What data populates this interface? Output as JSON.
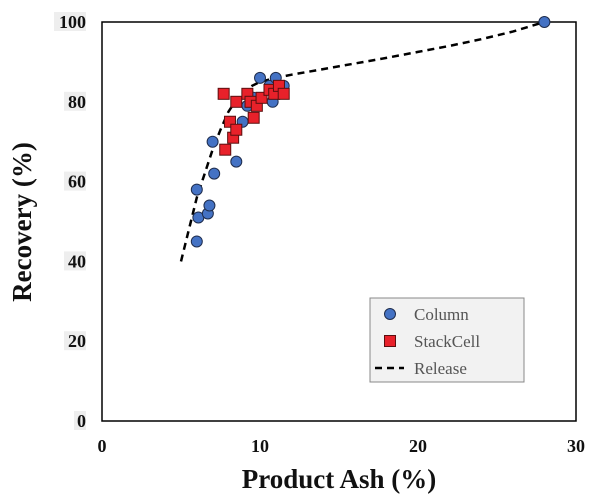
{
  "chart_data": {
    "type": "scatter",
    "xlabel": "Product Ash (%)",
    "ylabel": "Recovery (%)",
    "xlim": [
      0,
      30
    ],
    "ylim": [
      0,
      100
    ],
    "xticks": [
      0,
      10,
      20,
      30
    ],
    "yticks": [
      0,
      20,
      40,
      60,
      80,
      100
    ],
    "grid": false,
    "legend_placement": "bottom-right",
    "series": [
      {
        "name": "Column",
        "kind": "scatter",
        "marker": "circle",
        "color": "#4472C4",
        "points": [
          [
            6.0,
            45
          ],
          [
            6.1,
            51
          ],
          [
            6.0,
            58
          ],
          [
            6.7,
            52
          ],
          [
            6.8,
            54
          ],
          [
            7.1,
            62
          ],
          [
            7.0,
            70
          ],
          [
            8.5,
            65
          ],
          [
            8.9,
            75
          ],
          [
            9.2,
            79
          ],
          [
            9.6,
            81
          ],
          [
            10.0,
            86
          ],
          [
            10.6,
            84
          ],
          [
            10.8,
            80
          ],
          [
            11.0,
            86
          ],
          [
            11.5,
            84
          ],
          [
            28.0,
            100
          ]
        ]
      },
      {
        "name": "StackCell",
        "kind": "scatter",
        "marker": "square",
        "color": "#E8212A",
        "points": [
          [
            7.7,
            82
          ],
          [
            7.8,
            68
          ],
          [
            8.1,
            75
          ],
          [
            8.3,
            71
          ],
          [
            8.5,
            73
          ],
          [
            8.5,
            80
          ],
          [
            9.2,
            82
          ],
          [
            9.4,
            80
          ],
          [
            9.6,
            76
          ],
          [
            9.8,
            79
          ],
          [
            10.1,
            81
          ],
          [
            10.6,
            83
          ],
          [
            10.9,
            82
          ],
          [
            11.2,
            84
          ],
          [
            11.5,
            82
          ]
        ]
      },
      {
        "name": "Release",
        "kind": "line",
        "style": "dashed",
        "color": "#000000",
        "points": [
          [
            5.0,
            40
          ],
          [
            5.5,
            48
          ],
          [
            6.0,
            56
          ],
          [
            6.5,
            62
          ],
          [
            7.0,
            68
          ],
          [
            7.5,
            73
          ],
          [
            8.0,
            77.5
          ],
          [
            8.5,
            80.5
          ],
          [
            9.0,
            82.5
          ],
          [
            9.5,
            84
          ],
          [
            10.0,
            85
          ],
          [
            11.0,
            86
          ],
          [
            12.0,
            86.8
          ],
          [
            14.0,
            88.2
          ],
          [
            16.0,
            89.6
          ],
          [
            18.0,
            91.0
          ],
          [
            20.0,
            92.5
          ],
          [
            22.0,
            94.0
          ],
          [
            24.0,
            95.7
          ],
          [
            26.0,
            97.6
          ],
          [
            28.0,
            100
          ]
        ]
      }
    ]
  }
}
